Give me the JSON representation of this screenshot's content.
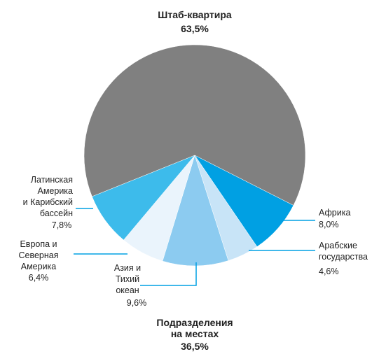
{
  "chart_data": {
    "type": "pie",
    "categories": [
      "Штаб-квартира",
      "Африка",
      "Арабские\nгосударства",
      "Азия и\nТихий\nокеан",
      "Европа и\nСеверная\nАмерика",
      "Латинская\nАмерика\nи Карибский\nбассейн"
    ],
    "values": [
      63.5,
      8.0,
      4.6,
      9.6,
      6.4,
      7.8
    ],
    "value_labels": [
      "63,5%",
      "8,0%",
      "4,6%",
      "9,6%",
      "6,4%",
      "7,8%"
    ],
    "colors": [
      "#808080",
      "#00a0e3",
      "#c8e4f7",
      "#8ccbf0",
      "#eaf4fc",
      "#3dbbeb"
    ],
    "annotation": {
      "text": "Подразделения\nна местах",
      "value": 36.5,
      "label": "36,5%"
    }
  }
}
